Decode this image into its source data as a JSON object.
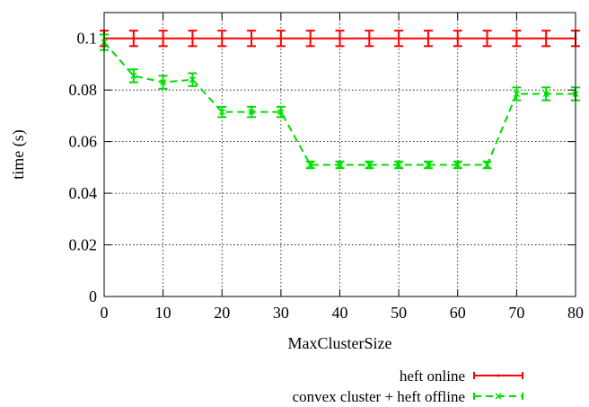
{
  "chart_data": {
    "type": "line",
    "title": "",
    "xlabel": "MaxClusterSize",
    "ylabel": "time (s)",
    "xlim": [
      0,
      80
    ],
    "ylim": [
      0,
      0.11
    ],
    "x_ticks": [
      0,
      10,
      20,
      30,
      40,
      50,
      60,
      70,
      80
    ],
    "x_tick_labels": [
      "0",
      "10",
      "20",
      "30",
      "40",
      "50",
      "60",
      "70",
      "80"
    ],
    "y_ticks": [
      0,
      0.02,
      0.04,
      0.06,
      0.08,
      0.1
    ],
    "y_tick_labels": [
      "0",
      "0.02",
      "0.04",
      "0.06",
      "0.08",
      "0.1"
    ],
    "grid": true,
    "legend_position": "bottom-right",
    "x": [
      0,
      5,
      10,
      15,
      20,
      25,
      30,
      35,
      40,
      45,
      50,
      55,
      60,
      65,
      70,
      75,
      80
    ],
    "series": [
      {
        "name": "heft online",
        "color": "#ff0000",
        "style": "solid",
        "values": [
          0.1,
          0.1,
          0.1,
          0.1,
          0.1,
          0.1,
          0.1,
          0.1,
          0.1,
          0.1,
          0.1,
          0.1,
          0.1,
          0.1,
          0.1,
          0.1,
          0.1
        ],
        "error": [
          0.003,
          0.003,
          0.003,
          0.003,
          0.003,
          0.003,
          0.003,
          0.003,
          0.003,
          0.003,
          0.003,
          0.003,
          0.003,
          0.003,
          0.003,
          0.003,
          0.003
        ]
      },
      {
        "name": "convex cluster + heft offline",
        "color": "#00dd00",
        "style": "dashed",
        "values": [
          0.0985,
          0.0855,
          0.083,
          0.084,
          0.0715,
          0.0715,
          0.0715,
          0.051,
          0.051,
          0.051,
          0.051,
          0.051,
          0.051,
          0.051,
          0.0785,
          0.0785,
          0.0785
        ],
        "error": [
          0.003,
          0.0025,
          0.0025,
          0.0025,
          0.002,
          0.002,
          0.002,
          0.0013,
          0.0013,
          0.0013,
          0.0013,
          0.0013,
          0.0013,
          0.0013,
          0.0025,
          0.0025,
          0.0025
        ]
      }
    ]
  }
}
